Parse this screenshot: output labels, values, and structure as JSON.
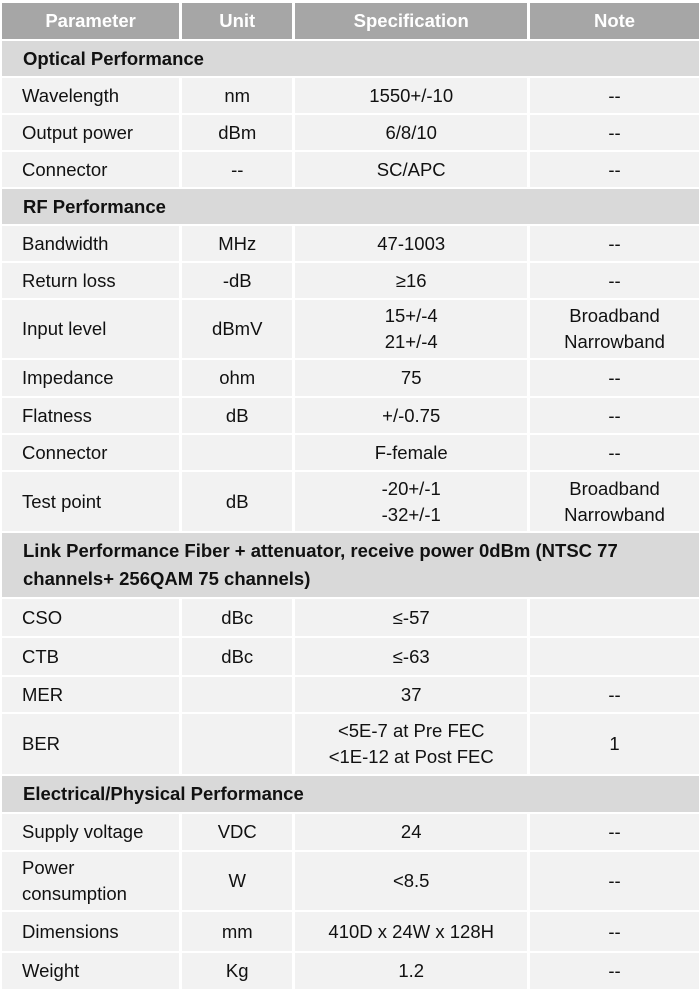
{
  "header": [
    "Parameter",
    "Unit",
    "Specification",
    "Note"
  ],
  "rows": [
    {
      "section": "Optical Performance"
    },
    {
      "cells": [
        "Wavelength",
        "nm",
        "1550+/-10",
        "--"
      ]
    },
    {
      "cells": [
        "Output power",
        "dBm",
        "6/8/10",
        "--"
      ]
    },
    {
      "cells": [
        "Connector",
        "--",
        "SC/APC",
        "--"
      ]
    },
    {
      "section": "RF Performance"
    },
    {
      "cells": [
        "Bandwidth",
        "MHz",
        "47-1003",
        "--"
      ]
    },
    {
      "cells": [
        "Return loss",
        "-dB",
        "≥16",
        "--"
      ]
    },
    {
      "cells": [
        "Input level",
        "dBmV",
        [
          "15+/-4",
          "21+/-4"
        ],
        [
          "Broadband",
          "Narrowband"
        ]
      ]
    },
    {
      "cells": [
        "Impedance",
        "ohm",
        "75",
        "--"
      ]
    },
    {
      "cells": [
        "Flatness",
        "dB",
        "+/-0.75",
        "--"
      ]
    },
    {
      "cells": [
        "Connector",
        "",
        "F-female",
        "--"
      ]
    },
    {
      "cells": [
        "Test point",
        "dB",
        [
          "-20+/-1",
          "-32+/-1"
        ],
        [
          "Broadband",
          "Narrowband"
        ]
      ]
    },
    {
      "section": "Link Performance Fiber + attenuator, receive power 0dBm (NTSC 77 channels+ 256QAM 75 channels)"
    },
    {
      "cells": [
        "CSO",
        "dBc",
        "≤-57",
        ""
      ]
    },
    {
      "cells": [
        "CTB",
        "dBc",
        "≤-63",
        ""
      ]
    },
    {
      "cells": [
        "MER",
        "",
        "37",
        "--"
      ]
    },
    {
      "cells": [
        "BER",
        "",
        [
          "<5E-7 at Pre FEC",
          "<1E-12 at Post FEC"
        ],
        "1"
      ]
    },
    {
      "section": "Electrical/Physical Performance"
    },
    {
      "cells": [
        "Supply voltage",
        "VDC",
        "24",
        "--"
      ]
    },
    {
      "cells": [
        [
          "Power",
          "consumption"
        ],
        "W",
        "<8.5",
        "--"
      ]
    },
    {
      "cells": [
        "Dimensions",
        "mm",
        "410D x 24W x 128H",
        "--"
      ]
    },
    {
      "cells": [
        "Weight",
        "Kg",
        "1.2",
        "--"
      ]
    }
  ]
}
